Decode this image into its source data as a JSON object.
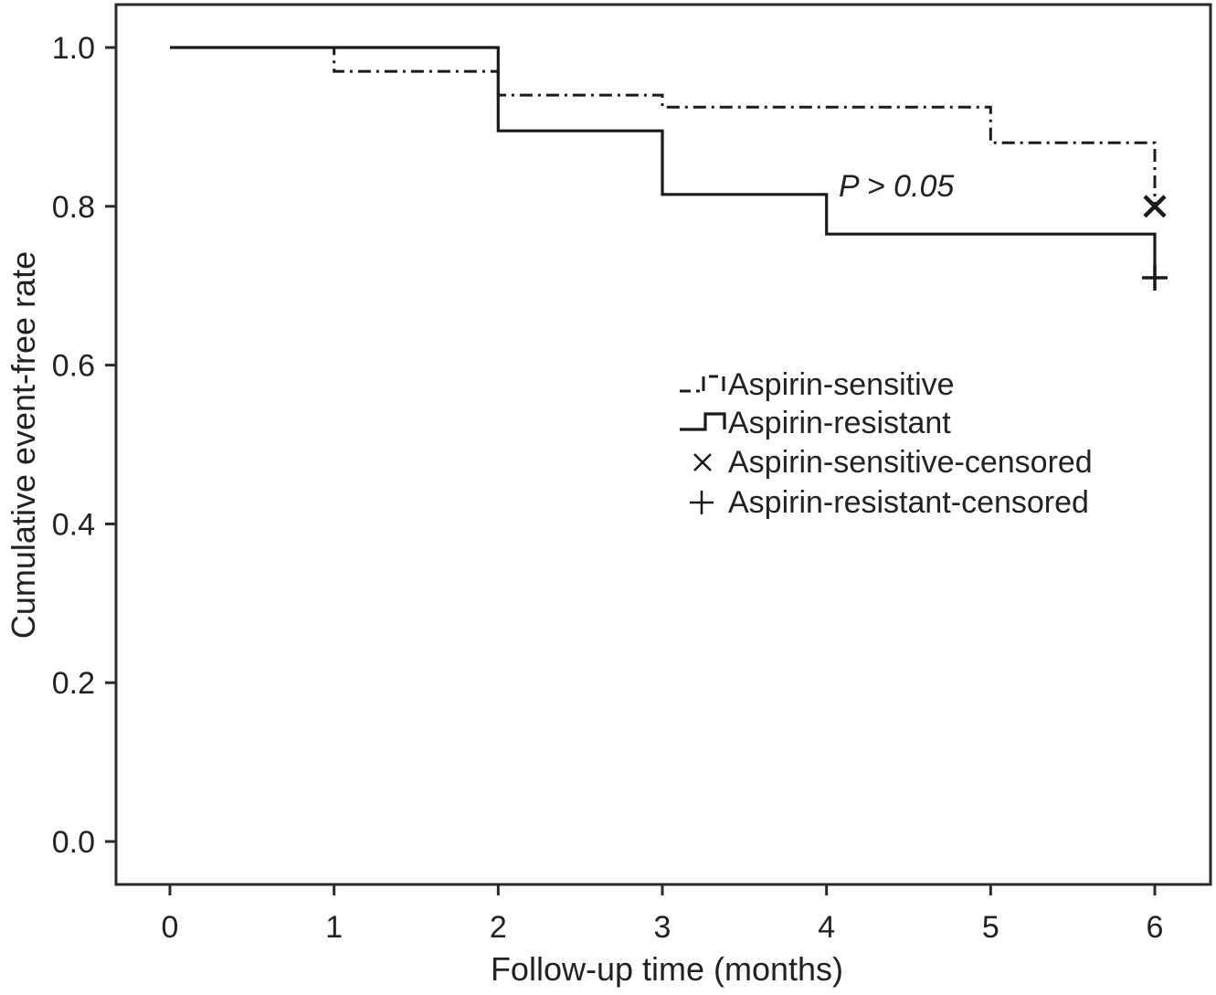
{
  "chart_data": {
    "type": "line",
    "xlabel": "Follow-up time (months)",
    "ylabel": "Cumulative event-free rate",
    "xlim": [
      0,
      6
    ],
    "ylim": [
      0,
      1
    ],
    "x_ticks": [
      "0",
      "1",
      "2",
      "3",
      "4",
      "5",
      "6"
    ],
    "y_ticks": [
      "0.0",
      "0.2",
      "0.4",
      "0.6",
      "0.8",
      "1.0"
    ],
    "grid": false,
    "legend_position": "center-right",
    "annotation": "P > 0.05",
    "series": [
      {
        "name": "Aspirin-sensitive",
        "style": "dash-dot",
        "color": "#1a1a1a",
        "x": [
          0,
          1,
          1,
          2,
          2,
          3,
          3,
          5,
          5,
          6,
          6
        ],
        "y": [
          1.0,
          1.0,
          0.97,
          0.97,
          0.94,
          0.94,
          0.925,
          0.925,
          0.88,
          0.88,
          0.8
        ]
      },
      {
        "name": "Aspirin-resistant",
        "style": "solid",
        "color": "#1a1a1a",
        "x": [
          0,
          2,
          2,
          3,
          3,
          4,
          4,
          6,
          6
        ],
        "y": [
          1.0,
          1.0,
          0.895,
          0.895,
          0.815,
          0.815,
          0.765,
          0.765,
          0.71
        ]
      }
    ],
    "censored": [
      {
        "name": "Aspirin-sensitive-censored",
        "marker": "x",
        "x": 6,
        "y": 0.8
      },
      {
        "name": "Aspirin-resistant-censored",
        "marker": "+",
        "x": 6,
        "y": 0.71
      }
    ]
  }
}
